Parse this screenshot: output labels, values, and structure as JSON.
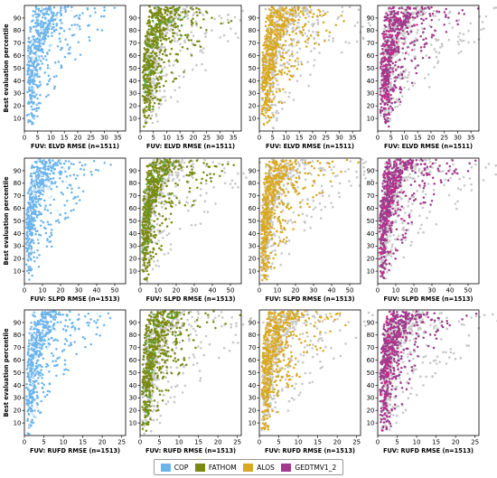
{
  "legend": {
    "items": [
      {
        "label": "COP",
        "color": "#6cb4ec"
      },
      {
        "label": "FATHOM",
        "color": "#7a8a10"
      },
      {
        "label": "ALOS",
        "color": "#d8a820"
      },
      {
        "label": "GEDTMV1_2",
        "color": "#a03a8c"
      }
    ]
  },
  "chart_data": [
    {
      "type": "scatter",
      "row": 0,
      "highlight": "COP",
      "xlabel": "FUV: ELVD RMSE  (n=1511)",
      "ylabel": "Best evaluation percentile",
      "xlim": [
        0,
        38
      ],
      "ylim": [
        0,
        100
      ],
      "xticks": [
        0,
        5,
        10,
        15,
        20,
        25,
        30,
        35
      ],
      "yticks": [
        10,
        20,
        30,
        40,
        50,
        60,
        70,
        80,
        90
      ],
      "scale": 4
    },
    {
      "type": "scatter",
      "row": 0,
      "highlight": "FATHOM",
      "xlabel": "FUV: ELVD RMSE  (n=1511)",
      "ylabel": "",
      "xlim": [
        0,
        38
      ],
      "ylim": [
        0,
        100
      ],
      "xticks": [
        0,
        5,
        10,
        15,
        20,
        25,
        30,
        35
      ],
      "yticks": [
        10,
        20,
        30,
        40,
        50,
        60,
        70,
        80,
        90
      ],
      "scale": 4
    },
    {
      "type": "scatter",
      "row": 0,
      "highlight": "ALOS",
      "xlabel": "FUV: ELVD RMSE  (n=1511)",
      "ylabel": "",
      "xlim": [
        0,
        38
      ],
      "ylim": [
        0,
        100
      ],
      "xticks": [
        0,
        5,
        10,
        15,
        20,
        25,
        30,
        35
      ],
      "yticks": [
        10,
        20,
        30,
        40,
        50,
        60,
        70,
        80,
        90
      ],
      "scale": 4
    },
    {
      "type": "scatter",
      "row": 0,
      "highlight": "GEDTMV1_2",
      "xlabel": "FUV: ELVD RMSE  (n=1511)",
      "ylabel": "",
      "xlim": [
        0,
        38
      ],
      "ylim": [
        0,
        100
      ],
      "xticks": [
        0,
        5,
        10,
        15,
        20,
        25,
        30,
        35
      ],
      "yticks": [
        10,
        20,
        30,
        40,
        50,
        60,
        70,
        80,
        90
      ],
      "scale": 4
    },
    {
      "type": "scatter",
      "row": 1,
      "highlight": "COP",
      "xlabel": "FUV: SLPD RMSE  (n=1513)",
      "ylabel": "Best evaluation percentile",
      "xlim": [
        0,
        56
      ],
      "ylim": [
        0,
        100
      ],
      "xticks": [
        0,
        10,
        20,
        30,
        40,
        50
      ],
      "yticks": [
        10,
        20,
        30,
        40,
        50,
        60,
        70,
        80,
        90
      ],
      "scale": 4
    },
    {
      "type": "scatter",
      "row": 1,
      "highlight": "FATHOM",
      "xlabel": "FUV: SLPD RMSE  (n=1513)",
      "ylabel": "",
      "xlim": [
        0,
        56
      ],
      "ylim": [
        0,
        100
      ],
      "xticks": [
        0,
        10,
        20,
        30,
        40,
        50
      ],
      "yticks": [
        10,
        20,
        30,
        40,
        50,
        60,
        70,
        80,
        90
      ],
      "scale": 4
    },
    {
      "type": "scatter",
      "row": 1,
      "highlight": "ALOS",
      "xlabel": "FUV: SLPD RMSE  (n=1513)",
      "ylabel": "",
      "xlim": [
        0,
        56
      ],
      "ylim": [
        0,
        100
      ],
      "xticks": [
        0,
        10,
        20,
        30,
        40,
        50
      ],
      "yticks": [
        10,
        20,
        30,
        40,
        50,
        60,
        70,
        80,
        90
      ],
      "scale": 4
    },
    {
      "type": "scatter",
      "row": 1,
      "highlight": "GEDTMV1_2",
      "xlabel": "FUV: SLPD RMSE  (n=1513)",
      "ylabel": "",
      "xlim": [
        0,
        56
      ],
      "ylim": [
        0,
        100
      ],
      "xticks": [
        0,
        10,
        20,
        30,
        40,
        50
      ],
      "yticks": [
        10,
        20,
        30,
        40,
        50,
        60,
        70,
        80,
        90
      ],
      "scale": 4
    },
    {
      "type": "scatter",
      "row": 2,
      "highlight": "COP",
      "xlabel": "FUV: RUFD RMSE  (n=1513)",
      "ylabel": "Best evaluation percentile",
      "xlim": [
        0,
        26
      ],
      "ylim": [
        0,
        100
      ],
      "xticks": [
        0,
        5,
        10,
        15,
        20,
        25
      ],
      "yticks": [
        10,
        20,
        30,
        40,
        50,
        60,
        70,
        80,
        90
      ],
      "scale": 2.4
    },
    {
      "type": "scatter",
      "row": 2,
      "highlight": "FATHOM",
      "xlabel": "FUV: RUFD RMSE  (n=1513)",
      "ylabel": "",
      "xlim": [
        0,
        26
      ],
      "ylim": [
        0,
        100
      ],
      "xticks": [
        0,
        5,
        10,
        15,
        20,
        25
      ],
      "yticks": [
        10,
        20,
        30,
        40,
        50,
        60,
        70,
        80,
        90
      ],
      "scale": 2.4
    },
    {
      "type": "scatter",
      "row": 2,
      "highlight": "ALOS",
      "xlabel": "FUV: RUFD RMSE  (n=1513)",
      "ylabel": "",
      "xlim": [
        0,
        26
      ],
      "ylim": [
        0,
        100
      ],
      "xticks": [
        0,
        5,
        10,
        15,
        20,
        25
      ],
      "yticks": [
        10,
        20,
        30,
        40,
        50,
        60,
        70,
        80,
        90
      ],
      "scale": 2.4
    },
    {
      "type": "scatter",
      "row": 2,
      "highlight": "GEDTMV1_2",
      "xlabel": "FUV: RUFD RMSE  (n=1513)",
      "ylabel": "",
      "xlim": [
        0,
        26
      ],
      "ylim": [
        0,
        100
      ],
      "xticks": [
        0,
        5,
        10,
        15,
        20,
        25
      ],
      "yticks": [
        10,
        20,
        30,
        40,
        50,
        60,
        70,
        80,
        90
      ],
      "scale": 2.4
    }
  ]
}
